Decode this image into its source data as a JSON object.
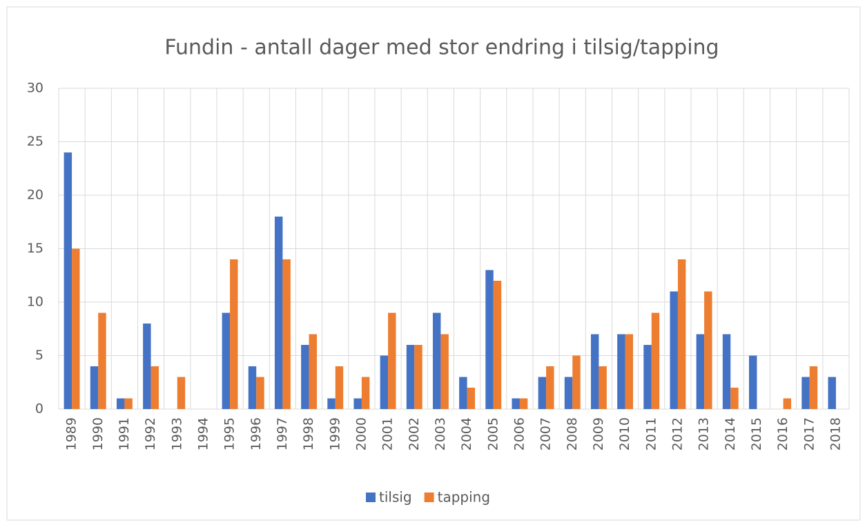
{
  "chart_data": {
    "type": "bar",
    "title": "Fundin - antall dager med stor endring i tilsig/tapping",
    "categories": [
      "1989",
      "1990",
      "1991",
      "1992",
      "1993",
      "1994",
      "1995",
      "1996",
      "1997",
      "1998",
      "1999",
      "2000",
      "2001",
      "2002",
      "2003",
      "2004",
      "2005",
      "2006",
      "2007",
      "2008",
      "2009",
      "2010",
      "2011",
      "2012",
      "2013",
      "2014",
      "2015",
      "2016",
      "2017",
      "2018"
    ],
    "series": [
      {
        "name": "tilsig",
        "color": "#4472c4",
        "values": [
          24,
          4,
          1,
          8,
          0,
          0,
          9,
          4,
          18,
          6,
          1,
          1,
          5,
          6,
          9,
          3,
          13,
          1,
          3,
          3,
          7,
          7,
          6,
          11,
          7,
          7,
          5,
          0,
          3,
          3
        ]
      },
      {
        "name": "tapping",
        "color": "#ed7d31",
        "values": [
          15,
          9,
          1,
          4,
          3,
          0,
          14,
          3,
          14,
          7,
          4,
          3,
          9,
          6,
          7,
          2,
          12,
          1,
          4,
          5,
          4,
          7,
          9,
          14,
          11,
          2,
          0,
          1,
          4,
          0
        ]
      }
    ],
    "ylim": [
      0,
      30
    ],
    "yticks": [
      0,
      5,
      10,
      15,
      20,
      25,
      30
    ],
    "grid": true,
    "legend": "bottom"
  }
}
